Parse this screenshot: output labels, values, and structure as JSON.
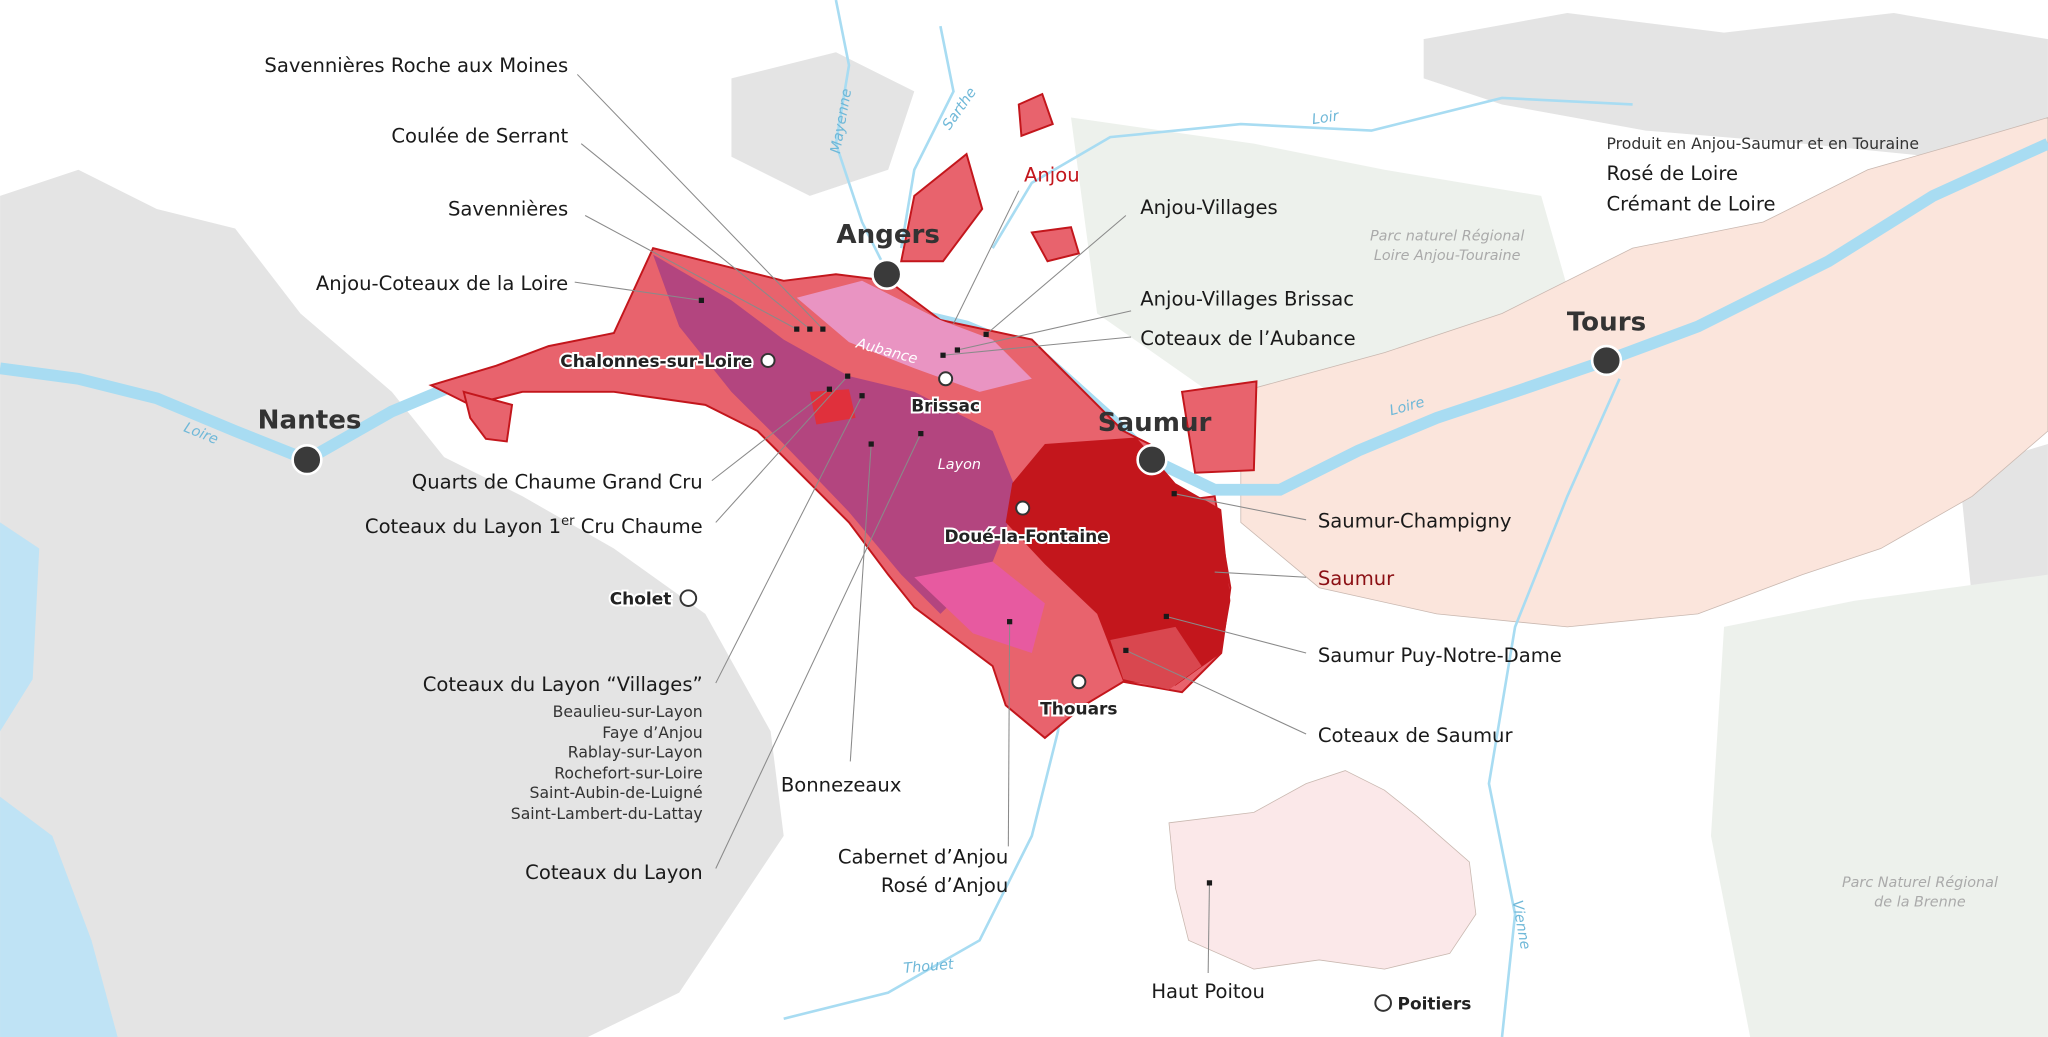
{
  "colors": {
    "land": "#e4e4e4",
    "parc": "#edf1ec",
    "touraine": "#fbe5dc",
    "haut_poitou": "#fbe8e9",
    "river": "#a8dcf2",
    "anjou": "#e8636d",
    "anjou_border": "#c3161c",
    "layon": "#b3457f",
    "aubance": "#e994c2",
    "bonnezeaux": "#e75aa0",
    "saumur": "#c3161c",
    "anjou_label": "#c3161c",
    "saumur_label": "#8b0f14"
  },
  "cities": {
    "nantes": "Nantes",
    "angers": "Angers",
    "saumur": "Saumur",
    "tours": "Tours"
  },
  "towns": {
    "chalonnes": "Chalonnes-sur-Loire",
    "brissac": "Brissac",
    "doue": "Doué-la-Fontaine",
    "thouars": "Thouars",
    "cholet": "Cholet",
    "poitiers": "Poitiers"
  },
  "rivers": {
    "loire_west": "Loire",
    "loire_east": "Loire",
    "loir": "Loir",
    "mayenne": "Mayenne",
    "sarthe": "Sarthe",
    "aubance": "Aubance",
    "layon": "Layon",
    "thouet": "Thouet",
    "vienne": "Vienne"
  },
  "parcs": {
    "loire_anjou_touraine": [
      "Parc naturel Régional",
      "Loire Anjou-Touraine"
    ],
    "brenne": [
      "Parc Naturel Régional",
      "de la Brenne"
    ]
  },
  "legend_note": {
    "caption": "Produit en Anjou-Saumur et en Touraine",
    "items": [
      "Rosé de Loire",
      "Crémant de Loire"
    ]
  },
  "appellations_left": {
    "savennieres_roche": "Savennières Roche aux Moines",
    "coulee_serrant": "Coulée de Serrant",
    "savennieres": "Savennières",
    "anjou_coteaux_loire": "Anjou-Coteaux de la Loire",
    "quarts_chaume": "Quarts de Chaume Grand Cru",
    "layon_chaume": {
      "before": "Coteaux du Layon 1",
      "sup": "er",
      "after": " Cru Chaume"
    },
    "layon_villages": "Coteaux du Layon “Villages”",
    "layon_villages_list": [
      "Beaulieu-sur-Layon",
      "Faye d’Anjou",
      "Rablay-sur-Layon",
      "Rochefort-sur-Loire",
      "Saint-Aubin-de-Luigné",
      "Saint-Lambert-du-Lattay"
    ],
    "layon": "Coteaux du Layon",
    "bonnezeaux": "Bonnezeaux",
    "cabernet_anjou": "Cabernet d’Anjou",
    "rose_anjou": "Rosé d’Anjou",
    "haut_poitou": "Haut Poitou"
  },
  "appellations_right": {
    "anjou": "Anjou",
    "anjou_villages": "Anjou-Villages",
    "anjou_villages_brissac": "Anjou-Villages Brissac",
    "coteaux_aubance": "Coteaux de l’Aubance",
    "saumur_champigny": "Saumur-Champigny",
    "saumur": "Saumur",
    "saumur_puy": "Saumur Puy-Notre-Dame",
    "coteaux_saumur": "Coteaux de Saumur"
  }
}
